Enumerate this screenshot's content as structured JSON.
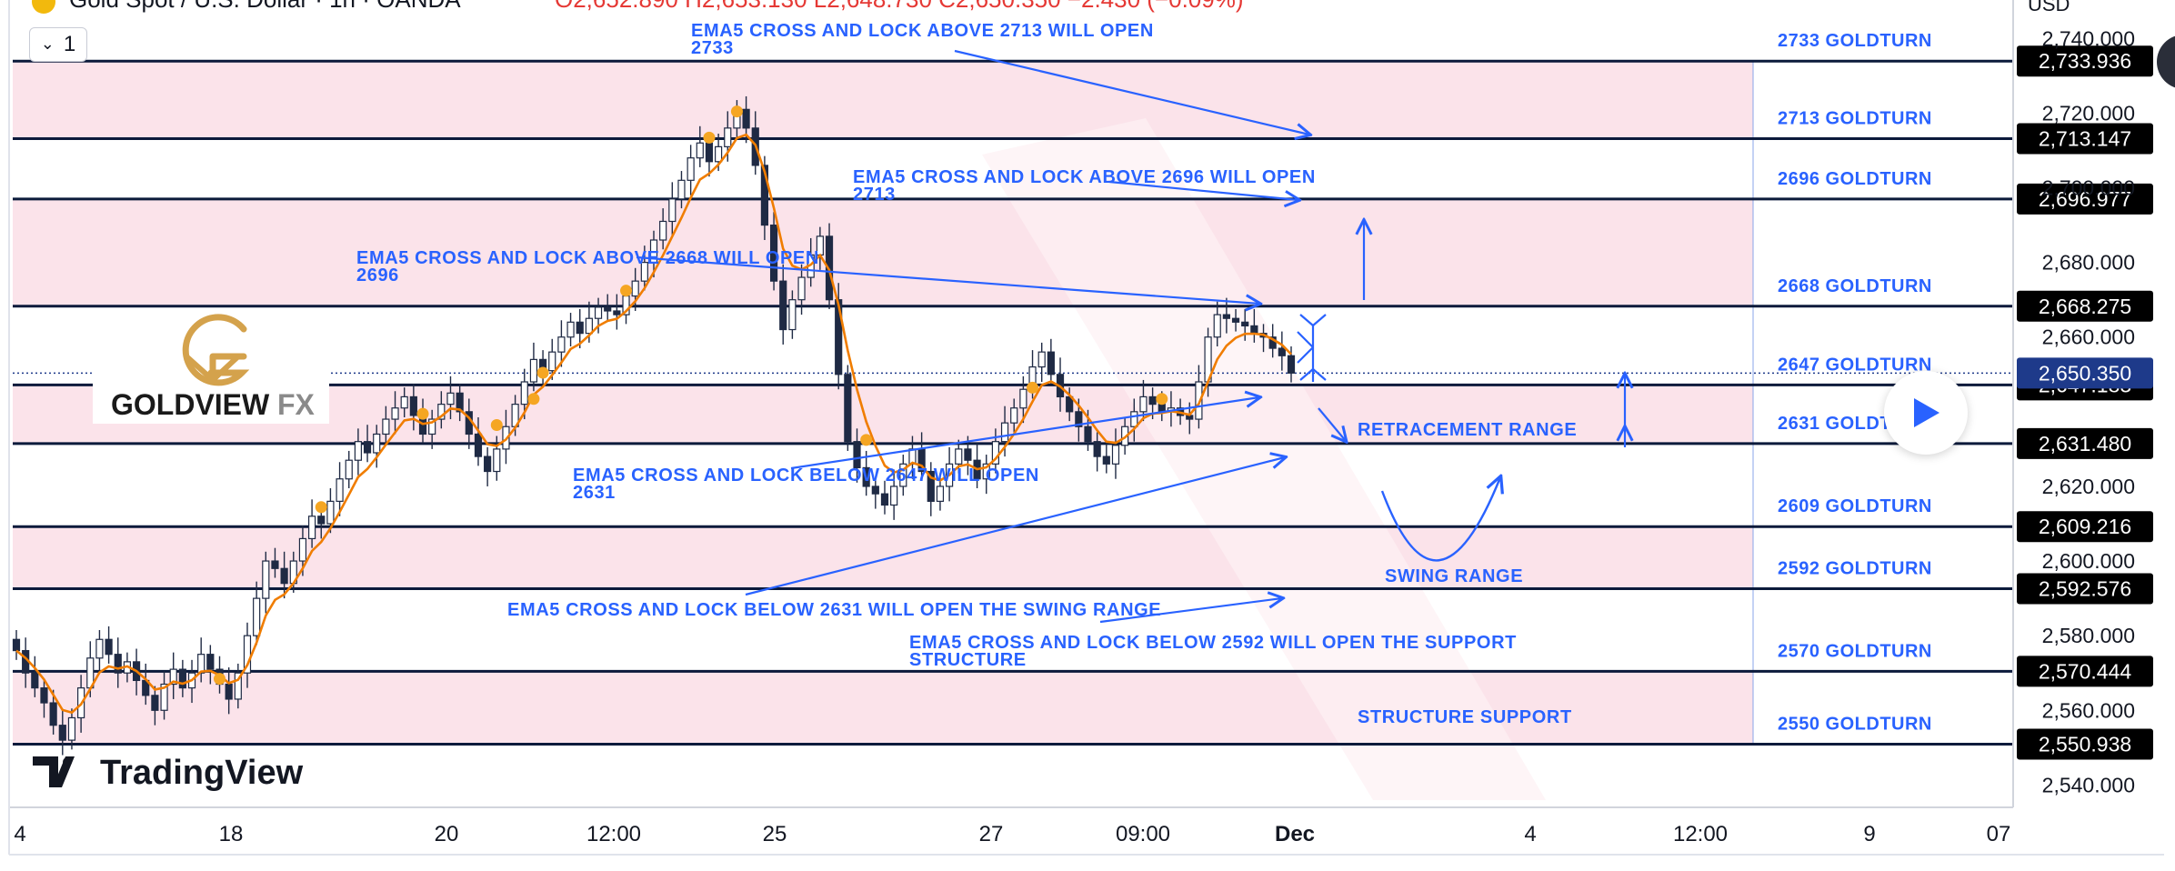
{
  "header": {
    "symbol": "Gold Spot / U.S. Dollar · 1h · OANDA",
    "ohlc_text": "O2,652.890 H2,653.130 L2,648.730 C2,650.350 −2.430 (−0.09%)",
    "interval_value": "1",
    "currency": "USD"
  },
  "brand": {
    "name": "GOLDVIEW FX",
    "name_main": "GOLDVIEW ",
    "name_accent": "FX",
    "watermark": "TradingView"
  },
  "colors": {
    "zone_fill": "#fbe3ea",
    "level_line": "#0b1a3b",
    "annotation": "#2962ff",
    "candle": "#1f2a44",
    "ema": "#f07d00",
    "marker": "#f5a623",
    "price_label_bg": "#000000",
    "last_price_bg": "#1e3a8a",
    "gold": "#d4a24c"
  },
  "chart_data": {
    "type": "candlestick",
    "title": "Gold Spot / U.S. Dollar · 1h · OANDA",
    "xlabel": "",
    "ylabel": "",
    "ylim": [
      2534,
      2743
    ],
    "y_ticks": [
      "2,740.000",
      "2,720.000",
      "2,700.000",
      "2,680.000",
      "2,660.000",
      "2,620.000",
      "2,600.000",
      "2,580.000",
      "2,560.000",
      "2,540.000"
    ],
    "x_ticks": [
      "4",
      "18",
      "20",
      "12:00",
      "25",
      "27",
      "09:00",
      "Dec",
      "4",
      "12:00",
      "9",
      "07"
    ],
    "last_price": 2650.35,
    "levels": [
      {
        "value": 2733.936,
        "label": "2,733.936",
        "name": "2733 GOLDTURN"
      },
      {
        "value": 2713.147,
        "label": "2,713.147",
        "name": "2713 GOLDTURN"
      },
      {
        "value": 2696.977,
        "label": "2,696.977",
        "name": "2696 GOLDTURN"
      },
      {
        "value": 2668.275,
        "label": "2,668.275",
        "name": "2668 GOLDTURN"
      },
      {
        "value": 2647.183,
        "label": "2,647.183",
        "name": "2647 GOLDTURN"
      },
      {
        "value": 2631.48,
        "label": "2,631.480",
        "name": "2631 GOLDTURN"
      },
      {
        "value": 2609.216,
        "label": "2,609.216",
        "name": "2609 GOLDTURN"
      },
      {
        "value": 2592.576,
        "label": "2,592.576",
        "name": "2592 GOLDTURN"
      },
      {
        "value": 2570.444,
        "label": "2,570.444",
        "name": "2570 GOLDTURN"
      },
      {
        "value": 2550.938,
        "label": "2,550.938",
        "name": "2550 GOLDTURN"
      }
    ],
    "last_price_label": "2,650.350",
    "zones": [
      [
        2713.147,
        2733.936
      ],
      [
        2668.275,
        2696.977
      ],
      [
        2631.48,
        2647.183
      ],
      [
        2592.576,
        2609.216
      ],
      [
        2550.938,
        2570.444
      ]
    ],
    "series_close": [
      2576,
      2570,
      2566,
      2562,
      2556,
      2552,
      2558,
      2566,
      2574,
      2579,
      2575,
      2570,
      2573,
      2568,
      2564,
      2560,
      2567,
      2571,
      2566,
      2570,
      2575,
      2571,
      2567,
      2563,
      2570,
      2580,
      2590,
      2600,
      2598,
      2594,
      2600,
      2606,
      2612,
      2610,
      2616,
      2622,
      2627,
      2632,
      2629,
      2634,
      2638,
      2641,
      2644,
      2639,
      2634,
      2638,
      2642,
      2645,
      2640,
      2634,
      2628,
      2624,
      2630,
      2636,
      2642,
      2648,
      2654,
      2651,
      2656,
      2660,
      2664,
      2661,
      2665,
      2668,
      2667,
      2666,
      2671,
      2675,
      2680,
      2686,
      2691,
      2697,
      2702,
      2708,
      2712,
      2707,
      2711,
      2716,
      2721,
      2716,
      2706,
      2690,
      2675,
      2662,
      2670,
      2676,
      2682,
      2687,
      2670,
      2650,
      2632,
      2625,
      2620,
      2618,
      2615,
      2620,
      2626,
      2630,
      2624,
      2616,
      2620,
      2626,
      2630,
      2627,
      2622,
      2626,
      2632,
      2637,
      2641,
      2646,
      2652,
      2656,
      2650,
      2644,
      2640,
      2636,
      2632,
      2628,
      2626,
      2631,
      2636,
      2640,
      2644,
      2642,
      2640,
      2641,
      2639,
      2638,
      2648,
      2660,
      2666,
      2665,
      2664,
      2663,
      2661,
      2660,
      2657,
      2655,
      2650.35
    ],
    "markers": [
      2566,
      2612,
      2637,
      2641,
      2634,
      2648,
      2670,
      2711,
      2718,
      2630,
      2644,
      2641
    ],
    "annotations": [
      {
        "text": "EMA5 CROSS AND LOCK ABOVE 2713 WILL OPEN",
        "text2": "2733"
      },
      {
        "text": "EMA5 CROSS AND LOCK ABOVE 2696 WILL OPEN",
        "text2": "2713"
      },
      {
        "text": "EMA5 CROSS AND LOCK ABOVE 2668 WILL OPEN",
        "text2": "2696"
      },
      {
        "text": "EMA5 CROSS AND LOCK BELOW 2647 WILL OPEN",
        "text2": "2631"
      },
      {
        "text": "EMA5 CROSS AND LOCK BELOW 2631 WILL OPEN THE SWING RANGE",
        "text2": ""
      },
      {
        "text": "EMA5 CROSS AND LOCK BELOW 2592 WILL OPEN THE SUPPORT",
        "text2": "STRUCTURE"
      },
      {
        "text": "RETRACEMENT RANGE",
        "text2": ""
      },
      {
        "text": "SWING RANGE",
        "text2": ""
      },
      {
        "text": "STRUCTURE SUPPORT",
        "text2": ""
      }
    ]
  }
}
